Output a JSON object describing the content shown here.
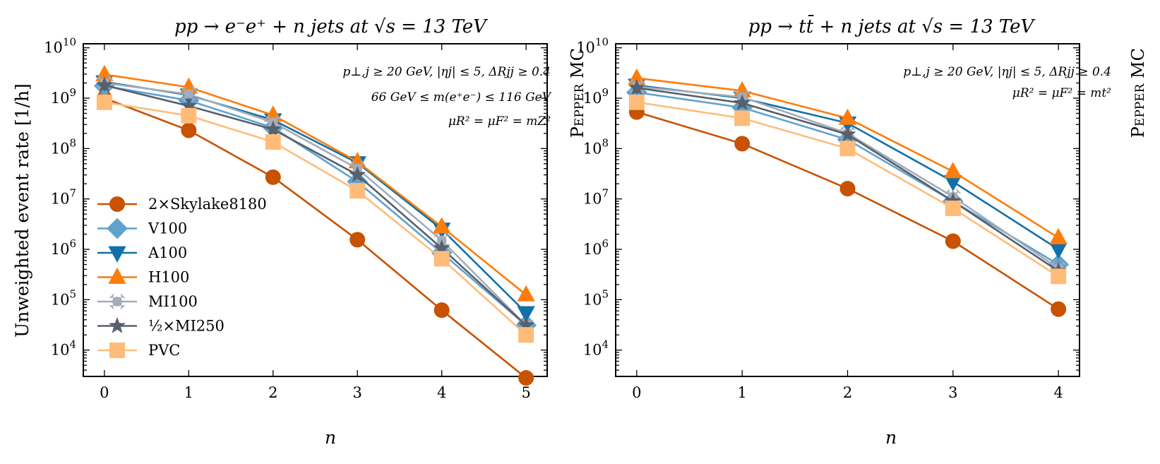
{
  "brand": "Pepper MC",
  "colors": {
    "2×Skylake8180": "#c85200",
    "V100": "#5fa2ce",
    "A100": "#1170aa",
    "H100": "#fc7d0b",
    "MI100": "#a3acb9",
    "½×MI250": "#57606c",
    "PVC": "#ffbc79"
  },
  "markers": {
    "2×Skylake8180": "circle",
    "V100": "diamond",
    "A100": "triangle-down",
    "H100": "triangle-up",
    "MI100": "plus-x",
    "½×MI250": "star",
    "PVC": "square"
  },
  "legend": [
    "2×Skylake8180",
    "V100",
    "A100",
    "H100",
    "MI100",
    "½×MI250",
    "PVC"
  ],
  "ytick_labels": [
    "10^4",
    "10^5",
    "10^6",
    "10^7",
    "10^8",
    "10^9",
    "10^10"
  ],
  "chart_data": [
    {
      "type": "line",
      "title": "pp → e⁻e⁺ + n jets at √s = 13 TeV",
      "xlabel": "n",
      "ylabel": "Unweighted event rate [1/h]",
      "yscale": "log",
      "xlim": [
        -0.25,
        5.25
      ],
      "ylim": [
        3000,
        12000000000
      ],
      "categories": [
        0,
        1,
        2,
        3,
        4,
        5
      ],
      "annotations": [
        "p⊥,j ≥ 20 GeV, |ηj| ≤ 5, ΔRjj ≥ 0.4",
        "66 GeV ≤ m(e⁺e⁻) ≤ 116 GeV",
        "μR² = μF² = mZ²"
      ],
      "series": [
        {
          "name": "2×Skylake8180",
          "values": [
            1000000000,
            230000000,
            27000000,
            1550000,
            62000,
            2800
          ]
        },
        {
          "name": "V100",
          "values": [
            1750000000,
            900000000,
            260000000,
            22000000,
            850000,
            31000
          ]
        },
        {
          "name": "A100",
          "values": [
            2100000000,
            1150000000,
            370000000,
            52000000,
            2500000,
            55000
          ]
        },
        {
          "name": "H100",
          "values": [
            2950000000,
            1650000000,
            460000000,
            55000000,
            2800000,
            125000
          ]
        },
        {
          "name": "MI100",
          "values": [
            2000000000,
            1200000000,
            330000000,
            40000000,
            1500000,
            31000
          ]
        },
        {
          "name": "½×MI250",
          "values": [
            1800000000,
            700000000,
            240000000,
            30000000,
            1050000,
            31000
          ]
        },
        {
          "name": "PVC",
          "values": [
            830000000,
            450000000,
            135000000,
            14500000,
            650000,
            20000
          ]
        }
      ]
    },
    {
      "type": "line",
      "title": "pp → tt̄ + n jets at √s = 13 TeV",
      "xlabel": "n",
      "ylabel": "",
      "yscale": "log",
      "xlim": [
        -0.2,
        4.2
      ],
      "ylim": [
        3000,
        12000000000
      ],
      "categories": [
        0,
        1,
        2,
        3,
        4
      ],
      "annotations": [
        "p⊥,j ≥ 20 GeV, |ηj| ≤ 5, ΔRjj ≥ 0.4",
        "μR² = μF² = mt²"
      ],
      "series": [
        {
          "name": "2×Skylake8180",
          "values": [
            530000000,
            125000000,
            16000000,
            1450000,
            65000
          ]
        },
        {
          "name": "V100",
          "values": [
            1300000000,
            650000000,
            150000000,
            9000000,
            500000
          ]
        },
        {
          "name": "A100",
          "values": [
            1800000000,
            1000000000,
            320000000,
            22000000,
            1000000
          ]
        },
        {
          "name": "H100",
          "values": [
            2500000000,
            1400000000,
            400000000,
            35000000,
            1700000
          ]
        },
        {
          "name": "MI100",
          "values": [
            1700000000,
            1050000000,
            200000000,
            11000000,
            420000
          ]
        },
        {
          "name": "½×MI250",
          "values": [
            1600000000,
            800000000,
            190000000,
            9000000,
            370000
          ]
        },
        {
          "name": "PVC",
          "values": [
            830000000,
            400000000,
            100000000,
            6500000,
            290000
          ]
        }
      ]
    }
  ]
}
